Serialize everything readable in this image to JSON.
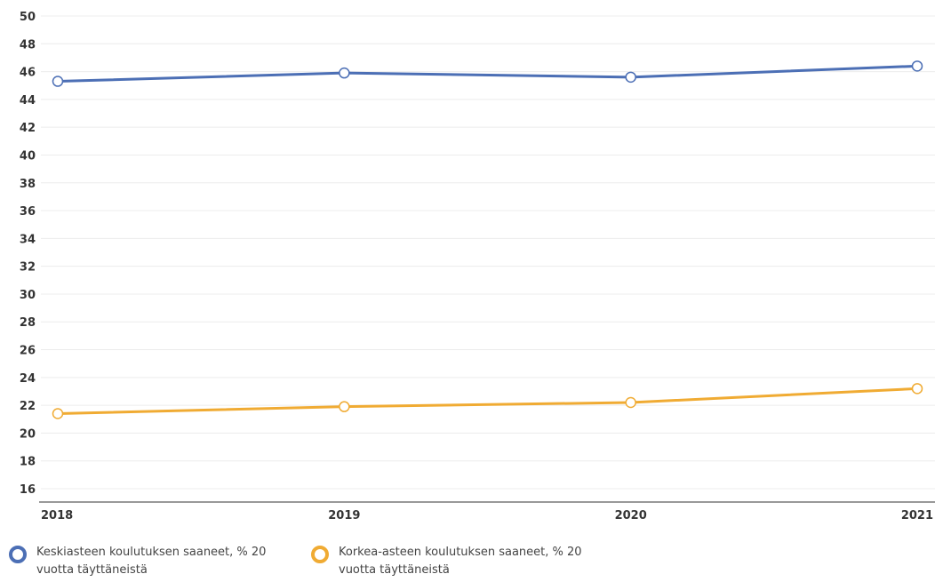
{
  "chart_data": {
    "type": "line",
    "categories": [
      "2018",
      "2019",
      "2020",
      "2021"
    ],
    "series": [
      {
        "name": "Keskiasteen koulutuksen saaneet, % 20 vuotta täyttäneistä",
        "values": [
          45.3,
          45.9,
          45.6,
          46.4
        ],
        "color": "#4c6fb5"
      },
      {
        "name": "Korkea-asteen koulutuksen saaneet, % 20 vuotta täyttäneistä",
        "values": [
          21.4,
          21.9,
          22.2,
          23.2
        ],
        "color": "#f0ab33"
      }
    ],
    "yticks": [
      "16",
      "18",
      "20",
      "22",
      "24",
      "26",
      "28",
      "30",
      "32",
      "34",
      "36",
      "38",
      "40",
      "42",
      "44",
      "46",
      "48",
      "50"
    ],
    "ylim": [
      15,
      50
    ],
    "grid": true,
    "legend_position": "bottom-left"
  }
}
